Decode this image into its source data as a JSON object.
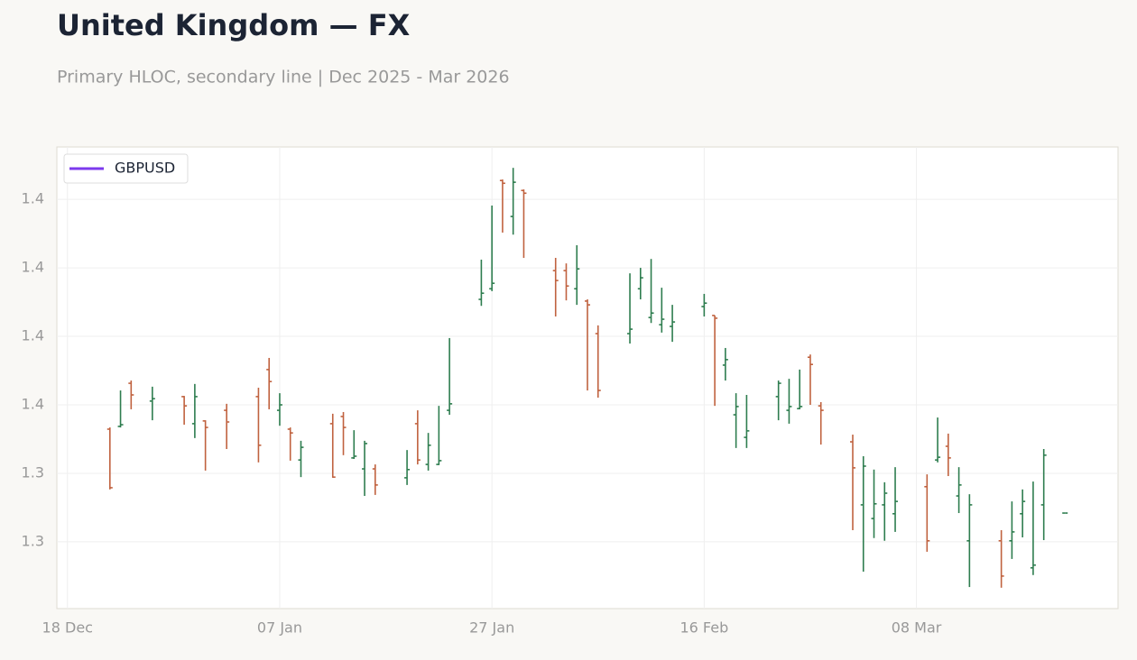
{
  "chart_data": {
    "type": "ohlc",
    "title": "United Kingdom — FX",
    "subtitle": "Primary HLOC, secondary line | Dec 2025 - Mar 2026",
    "x": [
      "2025-12-22",
      "2025-12-23",
      "2025-12-24",
      "2025-12-26",
      "2025-12-29",
      "2025-12-30",
      "2025-12-31",
      "2026-01-02",
      "2026-01-05",
      "2026-01-06",
      "2026-01-07",
      "2026-01-08",
      "2026-01-09",
      "2026-01-12",
      "2026-01-13",
      "2026-01-14",
      "2026-01-15",
      "2026-01-16",
      "2026-01-19",
      "2026-01-20",
      "2026-01-21",
      "2026-01-22",
      "2026-01-23",
      "2026-01-26",
      "2026-01-27",
      "2026-01-28",
      "2026-01-29",
      "2026-01-30",
      "2026-02-02",
      "2026-02-03",
      "2026-02-04",
      "2026-02-05",
      "2026-02-06",
      "2026-02-09",
      "2026-02-10",
      "2026-02-11",
      "2026-02-12",
      "2026-02-13",
      "2026-02-16",
      "2026-02-17",
      "2026-02-18",
      "2026-02-19",
      "2026-02-20",
      "2026-02-23",
      "2026-02-24",
      "2026-02-25",
      "2026-02-26",
      "2026-02-27",
      "2026-03-02",
      "2026-03-03",
      "2026-03-04",
      "2026-03-05",
      "2026-03-06",
      "2026-03-09",
      "2026-03-10",
      "2026-03-11",
      "2026-03-12",
      "2026-03-13",
      "2026-03-16",
      "2026-03-17",
      "2026-03-18",
      "2026-03-19",
      "2026-03-20",
      "2026-03-22"
    ],
    "open": [
      1.3529,
      1.3537,
      1.3663,
      1.3611,
      1.3624,
      1.3545,
      1.3553,
      1.3584,
      1.3624,
      1.3703,
      1.3584,
      1.3529,
      1.3439,
      1.3545,
      1.3566,
      1.3445,
      1.3413,
      1.3413,
      1.3387,
      1.3545,
      1.3426,
      1.3426,
      1.3584,
      1.3908,
      1.3939,
      1.4255,
      1.415,
      1.4226,
      1.3992,
      1.3992,
      1.3939,
      1.3903,
      1.3808,
      1.3808,
      1.3939,
      1.3855,
      1.3834,
      1.3829,
      1.3887,
      1.3861,
      1.3716,
      1.3571,
      1.3505,
      1.3624,
      1.3584,
      1.3589,
      1.3739,
      1.3597,
      1.3492,
      1.3308,
      1.3268,
      1.3308,
      1.3282,
      1.3361,
      1.3439,
      1.3479,
      1.3334,
      1.3203,
      1.3203,
      1.3203,
      1.3282,
      1.3124,
      1.3308,
      1.3284
    ],
    "high": [
      1.3534,
      1.3642,
      1.3671,
      1.3653,
      1.3626,
      1.3661,
      1.3555,
      1.3603,
      1.365,
      1.3737,
      1.3634,
      1.3534,
      1.3495,
      1.3574,
      1.3579,
      1.3526,
      1.3495,
      1.3426,
      1.3468,
      1.3584,
      1.3518,
      1.3597,
      1.3795,
      1.4024,
      1.4182,
      1.4258,
      1.4292,
      1.4229,
      1.4029,
      1.4013,
      1.4066,
      1.3908,
      1.3832,
      1.3984,
      1.4,
      1.4026,
      1.3942,
      1.3892,
      1.3924,
      1.3861,
      1.3766,
      1.3634,
      1.3629,
      1.3671,
      1.3676,
      1.3703,
      1.3747,
      1.3608,
      1.3513,
      1.345,
      1.3411,
      1.3374,
      1.3418,
      1.3397,
      1.3563,
      1.3516,
      1.3418,
      1.3339,
      1.3234,
      1.3318,
      1.3353,
      1.3376,
      1.3471,
      1.3284
    ],
    "low": [
      1.3353,
      1.3534,
      1.3587,
      1.3555,
      1.3542,
      1.3503,
      1.3408,
      1.3471,
      1.3432,
      1.3587,
      1.3539,
      1.3437,
      1.3389,
      1.3387,
      1.3453,
      1.3442,
      1.3334,
      1.3337,
      1.3366,
      1.3426,
      1.3408,
      1.3424,
      1.3571,
      1.3889,
      1.3932,
      1.4103,
      1.4097,
      1.4029,
      1.3858,
      1.3905,
      1.3892,
      1.3642,
      1.3621,
      1.3779,
      1.3908,
      1.3839,
      1.3811,
      1.3784,
      1.3858,
      1.3597,
      1.3671,
      1.3474,
      1.3474,
      1.3555,
      1.3545,
      1.3587,
      1.36,
      1.3484,
      1.3234,
      1.3113,
      1.3211,
      1.3203,
      1.3229,
      1.3171,
      1.3432,
      1.3392,
      1.3284,
      1.3068,
      1.3066,
      1.315,
      1.3213,
      1.3103,
      1.3205,
      1.3284
    ],
    "close": [
      1.3358,
      1.3542,
      1.3629,
      1.3618,
      1.3597,
      1.3624,
      1.3534,
      1.355,
      1.3482,
      1.3668,
      1.36,
      1.3518,
      1.3476,
      1.3389,
      1.3534,
      1.345,
      1.3487,
      1.3366,
      1.3411,
      1.3439,
      1.3482,
      1.3437,
      1.3603,
      1.3926,
      1.3955,
      1.4247,
      1.425,
      1.4218,
      1.3963,
      1.3947,
      1.3997,
      1.3892,
      1.3642,
      1.3821,
      1.3971,
      1.3868,
      1.385,
      1.3842,
      1.3897,
      1.3853,
      1.3732,
      1.3595,
      1.3524,
      1.3663,
      1.3595,
      1.3595,
      1.3718,
      1.3584,
      1.3416,
      1.3421,
      1.3311,
      1.3342,
      1.3318,
      1.3203,
      1.3447,
      1.3445,
      1.3366,
      1.3308,
      1.31,
      1.3229,
      1.3318,
      1.3132,
      1.3453,
      1.3284
    ],
    "up_color": "#2e7d4f",
    "down_color": "#c0623f",
    "series": [
      {
        "name": "GBPUSD",
        "color": "#7c3aed"
      }
    ],
    "legend": "upper left",
    "grid": true,
    "xlim": [
      "2025-12-17",
      "2026-03-27"
    ],
    "xticks": [
      {
        "value": "2025-12-18",
        "label": "18 Dec"
      },
      {
        "value": "2026-01-07",
        "label": "07 Jan"
      },
      {
        "value": "2026-01-27",
        "label": "27 Jan"
      },
      {
        "value": "2026-02-16",
        "label": "16 Feb"
      },
      {
        "value": "2026-03-08",
        "label": "08 Mar"
      }
    ],
    "ylim": [
      1.3005,
      1.4353
    ],
    "yticks": [
      {
        "value": 1.32,
        "label": "1.3"
      },
      {
        "value": 1.34,
        "label": "1.3"
      },
      {
        "value": 1.36,
        "label": "1.4"
      },
      {
        "value": 1.38,
        "label": "1.4"
      },
      {
        "value": 1.4,
        "label": "1.4"
      },
      {
        "value": 1.42,
        "label": "1.4"
      }
    ]
  }
}
